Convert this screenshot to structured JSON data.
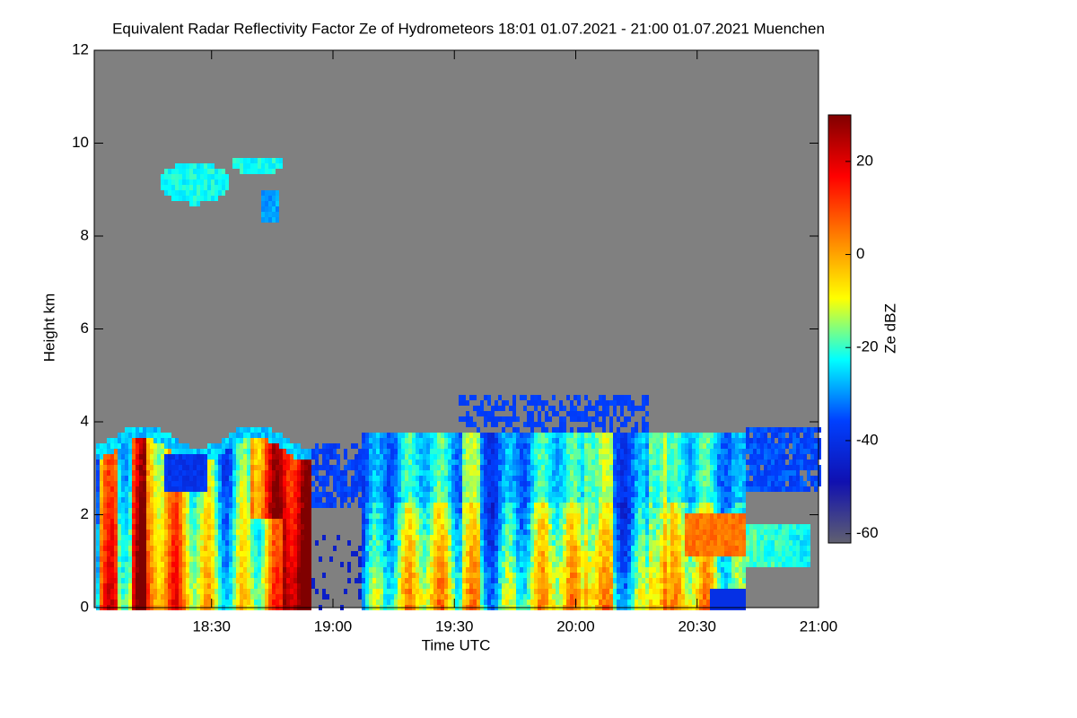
{
  "chart_data": {
    "type": "heatmap",
    "title": "Equivalent Radar Reflectivity Factor Ze of Hydrometeors   18:01 01.07.2021 - 21:00 01.07.2021 Muenchen",
    "xlabel": "Time UTC",
    "ylabel": "Height km",
    "xlim": [
      "18:01",
      "21:00"
    ],
    "xticks": [
      "18:30",
      "19:00",
      "19:30",
      "20:00",
      "20:30",
      "21:00"
    ],
    "ylim": [
      0,
      12
    ],
    "yticks": [
      0,
      2,
      4,
      6,
      8,
      10,
      12
    ],
    "colorbar": {
      "label": "Ze dBZ",
      "lim": [
        -62,
        30
      ],
      "ticks": [
        -60,
        -40,
        -20,
        0,
        20
      ],
      "colors": [
        "#606070",
        "#1010b0",
        "#0040ff",
        "#00ffff",
        "#ffff00",
        "#ff8000",
        "#ff0000",
        "#800000"
      ]
    },
    "background": "#808080"
  }
}
